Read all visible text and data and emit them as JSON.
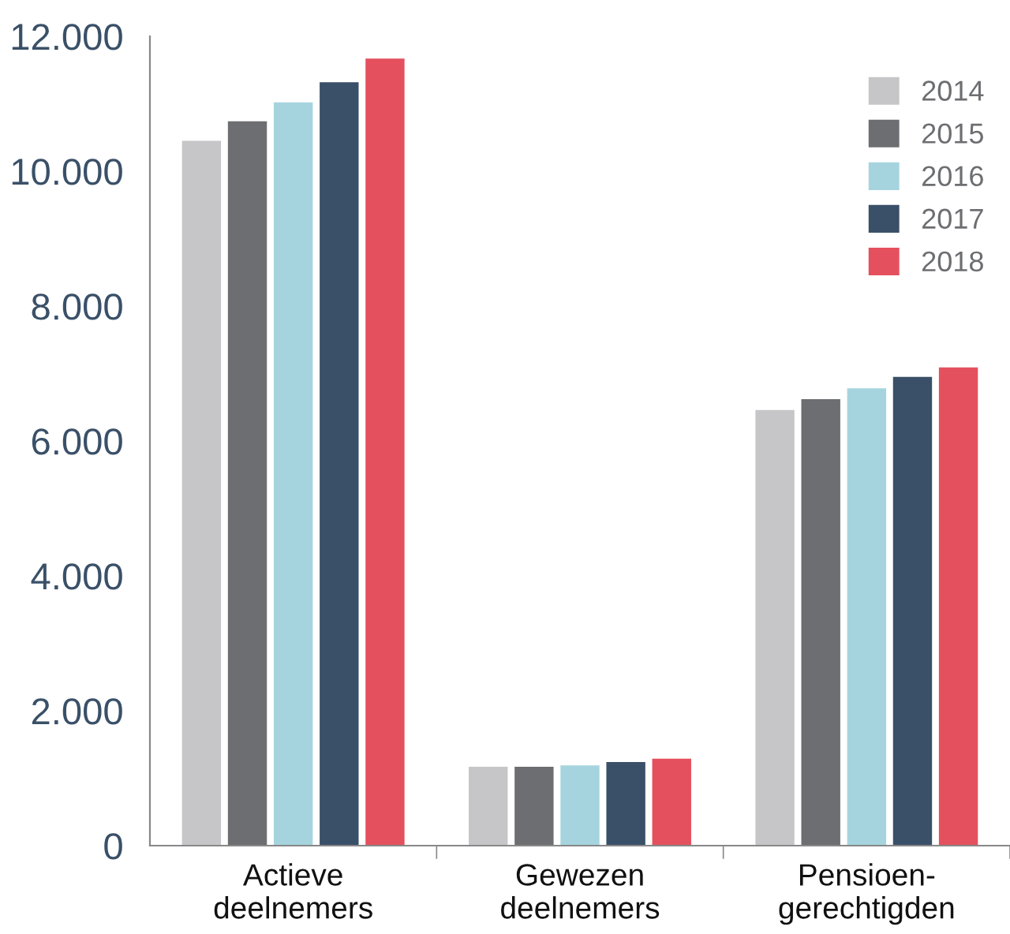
{
  "chart_data": {
    "type": "bar",
    "categories": [
      "Actieve\ndeelnemers",
      "Gewezen\ndeelnemers",
      "Pensioen-\ngerechtigden"
    ],
    "series": [
      {
        "name": "2014",
        "color": "#c6c6c8",
        "values": [
          10450,
          1170,
          6460
        ]
      },
      {
        "name": "2015",
        "color": "#6d6e71",
        "values": [
          10740,
          1170,
          6620
        ]
      },
      {
        "name": "2016",
        "color": "#a6d4de",
        "values": [
          11020,
          1190,
          6780
        ]
      },
      {
        "name": "2017",
        "color": "#3a5068",
        "values": [
          11320,
          1240,
          6950
        ]
      },
      {
        "name": "2018",
        "color": "#e5505e",
        "values": [
          11670,
          1290,
          7090
        ]
      }
    ],
    "ylim": [
      0,
      12000
    ],
    "yticks": [
      0,
      {
        "value": 2000,
        "label": "2.000"
      },
      {
        "value": 4000,
        "label": "4.000"
      },
      {
        "value": 6000,
        "label": "6.000"
      },
      {
        "value": 8000,
        "label": "8.000"
      },
      {
        "value": 10000,
        "label": "10.000"
      },
      {
        "value": 12000,
        "label": "12.000"
      }
    ],
    "grid": false,
    "legend": "top right"
  }
}
